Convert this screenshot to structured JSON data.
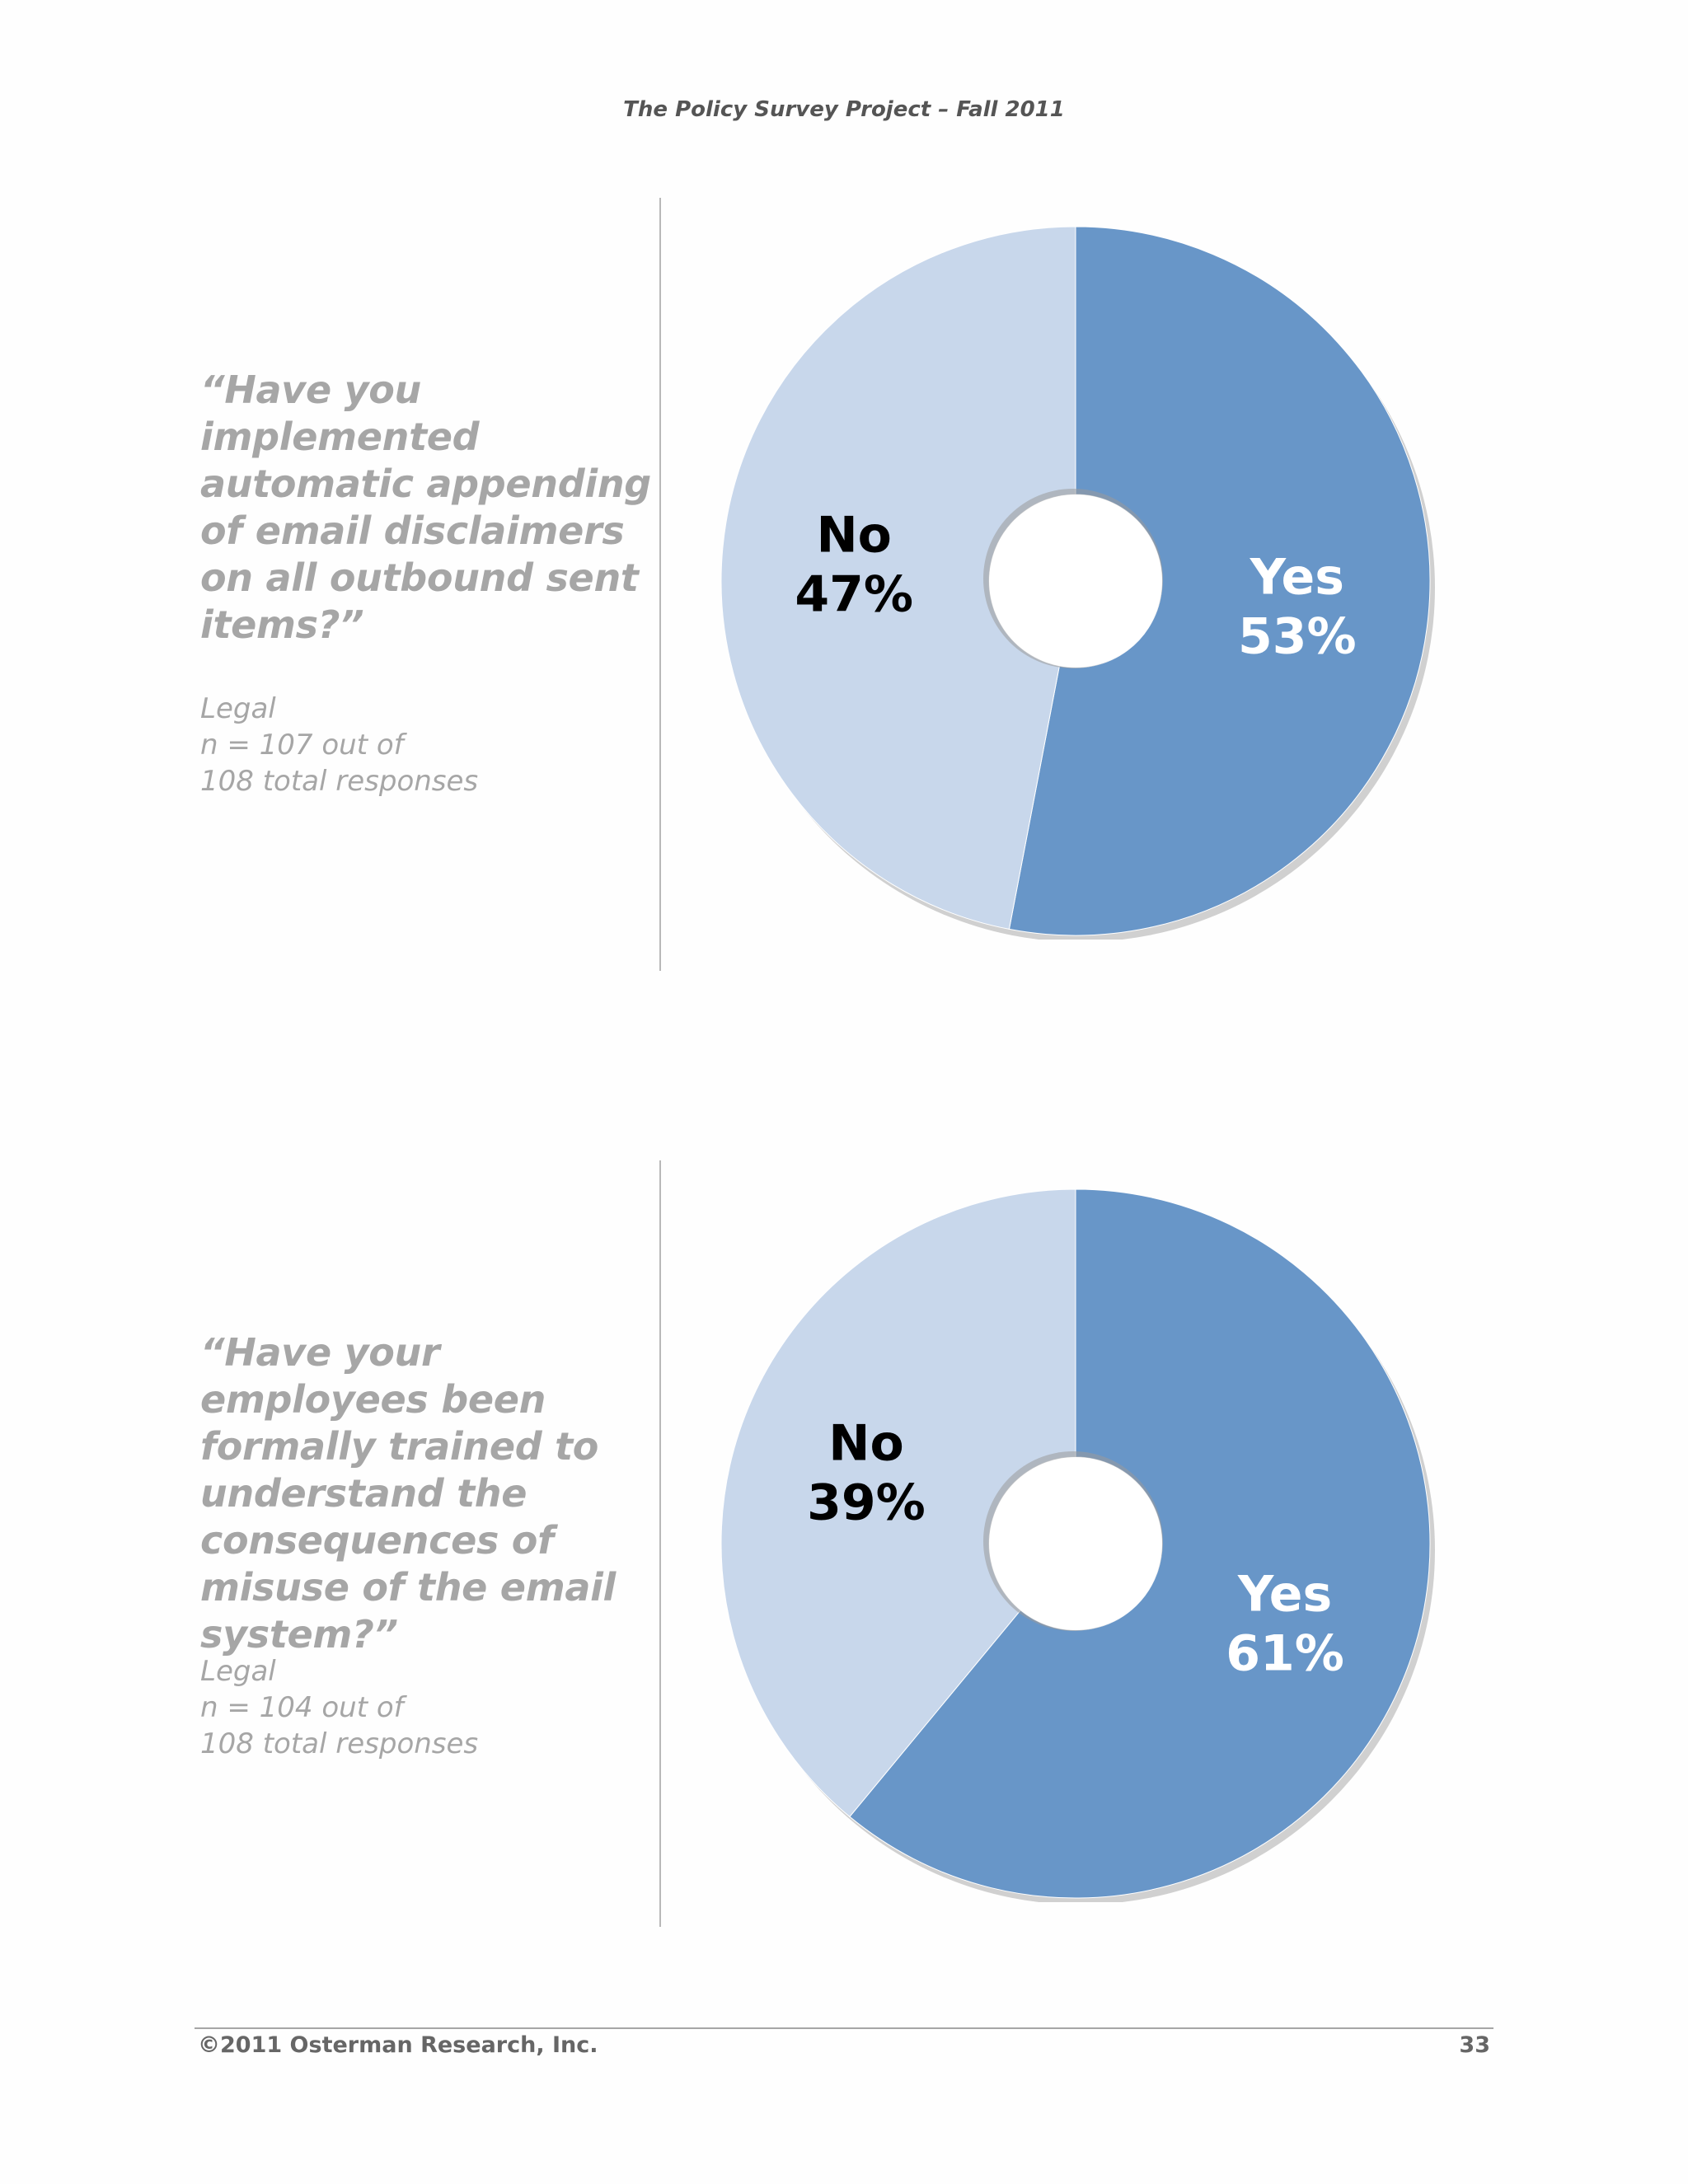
{
  "header": {
    "title": "The Policy Survey Project – Fall 2011"
  },
  "sections": [
    {
      "question": "“Have you implemented automatic appending of email disclaimers on all outbound sent items?”",
      "audience": "Legal",
      "sample": "n = 107 out of",
      "total": "108 total responses"
    },
    {
      "question": "“Have your employees been formally trained to understand the consequences of misuse of the email system?”",
      "audience": "Legal",
      "sample": "n = 104 out of",
      "total": "108 total responses"
    }
  ],
  "chart_data": [
    {
      "type": "pie",
      "labels": [
        "Yes",
        "No"
      ],
      "values": [
        53,
        47
      ],
      "label_texts": [
        "53%",
        "47%"
      ],
      "colors": [
        "#6896c8",
        "#c8d7eb"
      ],
      "label_colors": [
        "#ffffff",
        "#000000"
      ]
    },
    {
      "type": "pie",
      "labels": [
        "Yes",
        "No"
      ],
      "values": [
        61,
        39
      ],
      "label_texts": [
        "61%",
        "39%"
      ],
      "colors": [
        "#6896c8",
        "#c8d7eb"
      ],
      "label_colors": [
        "#ffffff",
        "#000000"
      ]
    }
  ],
  "footer": {
    "copyright": "©2011 Osterman Research, Inc.",
    "page_number": "33"
  }
}
